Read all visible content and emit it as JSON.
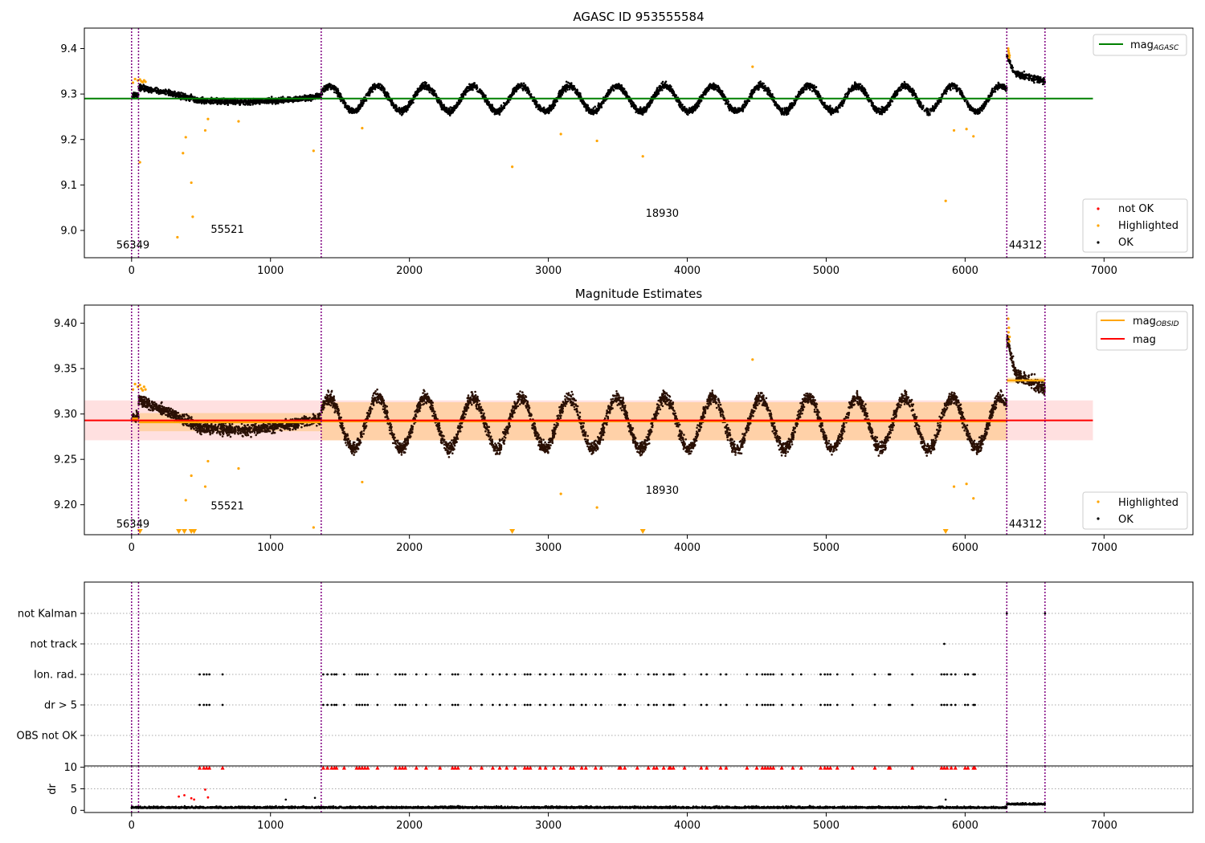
{
  "chart_data": [
    {
      "type": "scatter",
      "title": "AGASC ID 953555584",
      "xlim": [
        -340,
        7640
      ],
      "ylim": [
        8.94,
        9.445
      ],
      "xticks": [
        0,
        1000,
        2000,
        3000,
        4000,
        5000,
        6000,
        7000
      ],
      "yticks": [
        9.0,
        9.1,
        9.2,
        9.3,
        9.4
      ],
      "ytick_labels": [
        "9.0",
        "9.1",
        "9.2",
        "9.3",
        "9.4"
      ],
      "obs_boundaries": [
        0,
        50,
        1365,
        6300,
        6575
      ],
      "obsid_labels": [
        {
          "x": -110,
          "y": 8.96,
          "text": "56349"
        },
        {
          "x": 570,
          "y": 8.995,
          "text": "55521"
        },
        {
          "x": 3700,
          "y": 9.03,
          "text": "18930"
        },
        {
          "x": 6315,
          "y": 8.96,
          "text": "44312"
        }
      ],
      "agasc_mag": {
        "value": 9.29,
        "x_range": [
          -340,
          6920
        ],
        "color": "#008000"
      },
      "ok_series": {
        "name": "OK",
        "color": "#000000",
        "segments": [
          {
            "x": [
              0,
              50
            ],
            "base": 9.295,
            "amp": 0.004,
            "noise": 0.006
          },
          {
            "x": [
              50,
              1365
            ],
            "trend": [
              [
                50,
                9.315
              ],
              [
                300,
                9.3
              ],
              [
                500,
                9.285
              ],
              [
                800,
                9.282
              ],
              [
                1100,
                9.287
              ],
              [
                1365,
                9.295
              ]
            ],
            "noise": 0.006
          },
          {
            "x": [
              1365,
              6300
            ],
            "base": 9.29,
            "amp": 0.028,
            "period": 345,
            "phase": 0.5,
            "noise": 0.007
          },
          {
            "x": [
              6300,
              6575
            ],
            "trend": [
              [
                6300,
                9.385
              ],
              [
                6360,
                9.345
              ],
              [
                6450,
                9.338
              ],
              [
                6575,
                9.328
              ]
            ],
            "noise": 0.007
          }
        ]
      },
      "highlighted_points": {
        "name": "Highlighted",
        "color": "#FFA500",
        "x": [
          10,
          25,
          45,
          60,
          70,
          80,
          90,
          100,
          60,
          330,
          370,
          390,
          430,
          440,
          530,
          550,
          770,
          1310,
          1660,
          2740,
          3090,
          3350,
          3680,
          4470,
          5860,
          5920,
          6010,
          6060,
          6310,
          6315,
          6320,
          6312,
          6318
        ],
        "y": [
          9.325,
          9.333,
          9.33,
          9.332,
          9.328,
          9.326,
          9.33,
          9.327,
          9.15,
          8.985,
          9.17,
          9.205,
          9.105,
          9.03,
          9.22,
          9.245,
          9.24,
          9.175,
          9.225,
          9.14,
          9.212,
          9.197,
          9.163,
          9.36,
          9.065,
          9.22,
          9.223,
          9.207,
          9.4,
          9.39,
          9.385,
          9.395,
          9.38
        ]
      },
      "legend_top": {
        "position": "upper right",
        "entries": [
          {
            "label": "mag",
            "subscript": "AGASC",
            "color": "#008000"
          }
        ]
      },
      "legend_bottom": {
        "position": "lower right",
        "entries": [
          {
            "label": "not OK",
            "color": "#FF0000"
          },
          {
            "label": "Highlighted",
            "color": "#FFA500"
          },
          {
            "label": "OK",
            "color": "#000000"
          }
        ]
      }
    },
    {
      "type": "scatter",
      "title": "Magnitude Estimates",
      "xlim": [
        -340,
        7640
      ],
      "ylim": [
        9.167,
        9.42
      ],
      "xticks": [
        0,
        1000,
        2000,
        3000,
        4000,
        5000,
        6000,
        7000
      ],
      "yticks": [
        9.2,
        9.25,
        9.3,
        9.35,
        9.4
      ],
      "ytick_labels": [
        "9.20",
        "9.25",
        "9.30",
        "9.35",
        "9.40"
      ],
      "obs_boundaries": [
        0,
        50,
        1365,
        6300,
        6575
      ],
      "obsid_labels": [
        {
          "x": -110,
          "y": 9.175,
          "text": "56349"
        },
        {
          "x": 570,
          "y": 9.195,
          "text": "55521"
        },
        {
          "x": 3700,
          "y": 9.212,
          "text": "18930"
        },
        {
          "x": 6315,
          "y": 9.175,
          "text": "44312"
        }
      ],
      "mag_line": {
        "value": 9.293,
        "x_range": [
          -340,
          6920
        ],
        "band": [
          9.271,
          9.315
        ],
        "color": "#FF0000"
      },
      "obsid_mag": [
        {
          "x": [
            0,
            50
          ],
          "value": 9.295,
          "band": [
            9.29,
            9.3
          ]
        },
        {
          "x": [
            50,
            1365
          ],
          "value": 9.291,
          "band": [
            9.281,
            9.301
          ]
        },
        {
          "x": [
            1365,
            6300
          ],
          "value": 9.292,
          "band": [
            9.271,
            9.313
          ]
        },
        {
          "x": [
            6300,
            6575
          ],
          "value": 9.337,
          "band": [
            9.334,
            9.34
          ]
        }
      ],
      "ok_series": {
        "name": "OK",
        "color": "#000000",
        "segments": [
          {
            "x": [
              0,
              50
            ],
            "base": 9.295,
            "amp": 0.004,
            "noise": 0.006
          },
          {
            "x": [
              50,
              1365
            ],
            "trend": [
              [
                50,
                9.315
              ],
              [
                300,
                9.3
              ],
              [
                500,
                9.285
              ],
              [
                800,
                9.282
              ],
              [
                1100,
                9.287
              ],
              [
                1365,
                9.295
              ]
            ],
            "noise": 0.006
          },
          {
            "x": [
              1365,
              6300
            ],
            "base": 9.29,
            "amp": 0.028,
            "period": 345,
            "phase": 0.5,
            "noise": 0.007
          },
          {
            "x": [
              6300,
              6575
            ],
            "trend": [
              [
                6300,
                9.385
              ],
              [
                6360,
                9.345
              ],
              [
                6450,
                9.338
              ],
              [
                6575,
                9.328
              ]
            ],
            "noise": 0.007
          }
        ]
      },
      "highlighted_points": {
        "name": "Highlighted",
        "color": "#FFA500",
        "x": [
          10,
          25,
          45,
          60,
          70,
          80,
          90,
          100,
          390,
          430,
          530,
          550,
          770,
          1310,
          1660,
          3090,
          3350,
          4470,
          5920,
          6010,
          6060,
          6310,
          6315,
          6320,
          6312,
          6318
        ],
        "y": [
          9.327,
          9.333,
          9.33,
          9.332,
          9.328,
          9.326,
          9.33,
          9.327,
          9.205,
          9.232,
          9.22,
          9.248,
          9.24,
          9.175,
          9.225,
          9.212,
          9.197,
          9.36,
          9.22,
          9.223,
          9.207,
          9.405,
          9.395,
          9.385,
          9.39,
          9.38
        ]
      },
      "below_range_markers": {
        "color": "#FFA500",
        "x": [
          60,
          340,
          380,
          430,
          450,
          2740,
          3680,
          5860
        ]
      },
      "legend_top": {
        "position": "upper right",
        "entries": [
          {
            "label": "mag",
            "subscript": "OBSID",
            "color": "#FFA500"
          },
          {
            "label": "mag",
            "subscript": "",
            "color": "#FF0000"
          }
        ]
      },
      "legend_bottom": {
        "position": "lower right",
        "entries": [
          {
            "label": "Highlighted",
            "color": "#FFA500"
          },
          {
            "label": "OK",
            "color": "#000000"
          }
        ]
      }
    },
    {
      "type": "scatter",
      "title": "",
      "xlim": [
        -340,
        7640
      ],
      "categories": [
        "not Kalman",
        "not track",
        "Ion. rad.",
        "dr > 5",
        "OBS not OK"
      ],
      "obs_boundaries": [
        0,
        50,
        1365,
        6300,
        6575
      ],
      "flags": {
        "not Kalman": [
          6300,
          6575
        ],
        "not track": [
          5850
        ],
        "Ion. rad.": [
          490,
          520,
          540,
          560,
          655,
          1380,
          1410,
          1440,
          1460,
          1475,
          1530,
          1620,
          1640,
          1660,
          1680,
          1700,
          1770,
          1900,
          1930,
          1950,
          1970,
          2050,
          2120,
          2220,
          2310,
          2330,
          2350,
          2440,
          2520,
          2600,
          2650,
          2700,
          2760,
          2830,
          2850,
          2870,
          2940,
          2980,
          3040,
          3090,
          3160,
          3180,
          3240,
          3270,
          3340,
          3380,
          3510,
          3520,
          3550,
          3640,
          3720,
          3760,
          3780,
          3830,
          3870,
          3880,
          3900,
          3980,
          4100,
          4140,
          4240,
          4280,
          4430,
          4500,
          4540,
          4560,
          4580,
          4600,
          4620,
          4680,
          4760,
          4820,
          4960,
          4990,
          5010,
          5030,
          5080,
          5190,
          5350,
          5450,
          5460,
          5620,
          5830,
          5850,
          5870,
          5900,
          5930,
          6000,
          6020,
          6060,
          6070
        ],
        "dr > 5": [
          490,
          520,
          540,
          560,
          655,
          1380,
          1410,
          1440,
          1460,
          1475,
          1530,
          1620,
          1640,
          1660,
          1680,
          1700,
          1770,
          1900,
          1930,
          1950,
          1970,
          2050,
          2120,
          2220,
          2310,
          2330,
          2350,
          2440,
          2520,
          2600,
          2650,
          2700,
          2760,
          2830,
          2850,
          2870,
          2940,
          2980,
          3040,
          3090,
          3160,
          3180,
          3240,
          3270,
          3340,
          3380,
          3510,
          3520,
          3550,
          3640,
          3720,
          3760,
          3780,
          3830,
          3870,
          3880,
          3900,
          3980,
          4100,
          4140,
          4240,
          4280,
          4430,
          4500,
          4540,
          4560,
          4580,
          4600,
          4620,
          4680,
          4760,
          4820,
          4960,
          4990,
          5010,
          5030,
          5080,
          5190,
          5350,
          5450,
          5460,
          5620,
          5830,
          5850,
          5870,
          5900,
          5930,
          6000,
          6020,
          6060,
          6070
        ],
        "OBS not OK": []
      }
    },
    {
      "type": "scatter",
      "title": "",
      "ylabel": "dr",
      "xlim": [
        -340,
        7640
      ],
      "ylim": [
        -0.5,
        10.3
      ],
      "xticks": [
        0,
        1000,
        2000,
        3000,
        4000,
        5000,
        6000,
        7000
      ],
      "yticks": [
        0,
        5,
        10
      ],
      "ytick_labels": [
        "0",
        "5",
        "10"
      ],
      "obs_boundaries": [
        0,
        50,
        1365,
        6300,
        6575
      ],
      "ok_series": {
        "name": "OK",
        "color": "#000000",
        "base": 0.5,
        "noise": 0.35,
        "x_range": [
          0,
          6575
        ],
        "tail": {
          "x": [
            6300,
            6575
          ],
          "base": 1.3
        }
      },
      "not_ok_points": {
        "name": "not OK",
        "color": "#FF0000",
        "x": [
          340,
          380,
          430,
          450,
          530,
          550
        ],
        "y": [
          3.2,
          3.5,
          2.8,
          2.5,
          4.8,
          3.0
        ]
      },
      "clipped_markers": {
        "color": "#FF0000",
        "x": [
          490,
          520,
          540,
          560,
          655,
          1380,
          1410,
          1440,
          1460,
          1475,
          1530,
          1620,
          1640,
          1660,
          1680,
          1700,
          1770,
          1900,
          1930,
          1950,
          1970,
          2050,
          2120,
          2220,
          2310,
          2330,
          2350,
          2440,
          2520,
          2600,
          2650,
          2700,
          2760,
          2830,
          2850,
          2870,
          2940,
          2980,
          3040,
          3090,
          3160,
          3180,
          3240,
          3270,
          3340,
          3380,
          3510,
          3520,
          3550,
          3640,
          3720,
          3760,
          3780,
          3830,
          3870,
          3880,
          3900,
          3980,
          4100,
          4140,
          4240,
          4280,
          4430,
          4500,
          4540,
          4560,
          4580,
          4600,
          4620,
          4680,
          4760,
          4820,
          4960,
          4990,
          5010,
          5030,
          5080,
          5190,
          5350,
          5450,
          5460,
          5620,
          5830,
          5850,
          5870,
          5900,
          5930,
          6000,
          6020,
          6060,
          6070
        ]
      },
      "extra_points": {
        "x": [
          1110,
          1320,
          5860
        ],
        "y": [
          2.5,
          2.9,
          2.5
        ]
      }
    }
  ]
}
